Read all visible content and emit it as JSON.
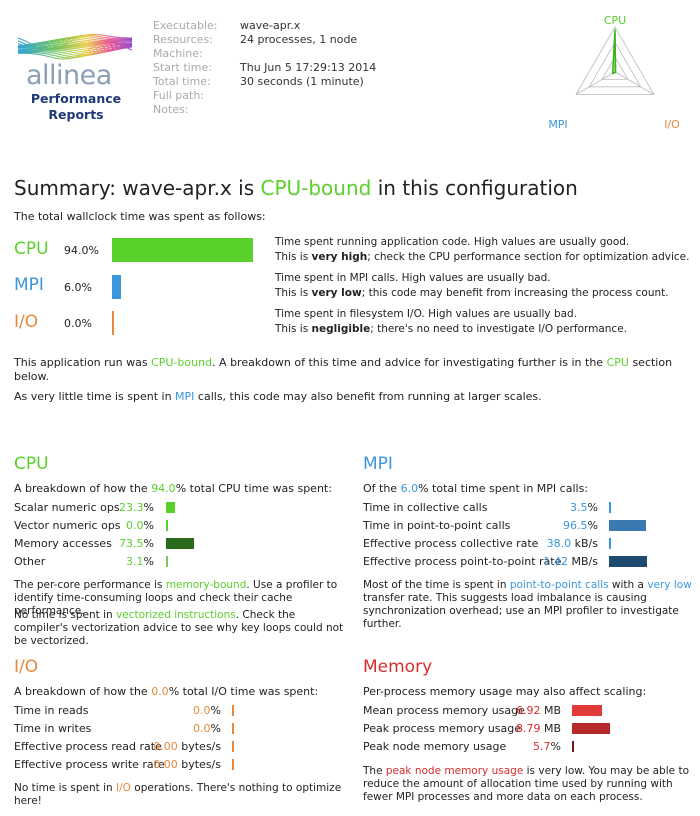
{
  "header": {
    "logo": {
      "brand": "allinea",
      "line1": "Performance",
      "line2": "Reports"
    },
    "meta": [
      {
        "key": "Executable:",
        "value": "wave-apr.x"
      },
      {
        "key": "Resources:",
        "value": "24 processes, 1 node"
      },
      {
        "key": "Machine:",
        "value": ""
      },
      {
        "key": "Start time:",
        "value": "Thu Jun 5 17:29:13 2014"
      },
      {
        "key": "Total time:",
        "value": "30 seconds (1 minute)"
      },
      {
        "key": "Full path:",
        "value": ""
      },
      {
        "key": "Notes:",
        "value": ""
      }
    ],
    "radar": {
      "cpu_label": "CPU",
      "mpi_label": "MPI",
      "io_label": "I/O",
      "cpu": 94.0,
      "mpi": 6.0,
      "io": 0.0
    }
  },
  "summary": {
    "title_prefix": "Summary: wave-apr.x is ",
    "title_highlight": "CPU-bound",
    "title_suffix": " in this configuration",
    "wallclock": "The total wallclock time was spent as follows:",
    "rows": [
      {
        "label": "CPU",
        "pct_text": "94.0%",
        "value": 94.0,
        "color": "#5ad02a",
        "desc1": "Time spent running application code. High values are usually good.",
        "desc2_pre": "This is ",
        "desc2_bold": "very high",
        "desc2_post": "; check the CPU performance section for optimization advice."
      },
      {
        "label": "MPI",
        "pct_text": "6.0%",
        "value": 6.0,
        "color": "#3a96dd",
        "desc1": "Time spent in MPI calls. High values are usually bad.",
        "desc2_pre": "This is ",
        "desc2_bold": "very low",
        "desc2_post": "; this code may benefit from increasing the process count."
      },
      {
        "label": "I/O",
        "pct_text": "0.0%",
        "value": 0.0,
        "color": "#e8883a",
        "desc1": "Time spent in filesystem I/O. High values are usually bad.",
        "desc2_pre": "This is ",
        "desc2_bold": "negligible",
        "desc2_post": "; there's no need to investigate I/O performance."
      }
    ],
    "para1_a": "This application run was ",
    "para1_b": "CPU-bound",
    "para1_c": ". A breakdown of this time and advice for investigating further is in the ",
    "para1_d": "CPU",
    "para1_e": " section below.",
    "para2_a": "As very little time is spent in ",
    "para2_b": "MPI",
    "para2_c": " calls, this code may also benefit from running at larger scales."
  },
  "cpu": {
    "title": "CPU",
    "intro_a": "A breakdown of how the ",
    "intro_b": "94.0",
    "intro_c": "% total CPU time was spent:",
    "rows": [
      {
        "label": "Scalar numeric ops",
        "num": "23.3",
        "unit": "%",
        "value": 23.3,
        "color": "#5ad02a"
      },
      {
        "label": "Vector numeric ops",
        "num": "0.0",
        "unit": "%",
        "value": 0.0,
        "color": "#5ad02a"
      },
      {
        "label": "Memory accesses",
        "num": "73.5",
        "unit": "%",
        "value": 73.5,
        "color": "#2a6a1a"
      },
      {
        "label": "Other",
        "num": "3.1",
        "unit": "%",
        "value": 3.1,
        "color": "#7ac85a"
      }
    ],
    "note1_a": "The per-core performance is ",
    "note1_b": "memory-bound",
    "note1_c": ". Use a profiler to identify time-consuming loops and check their cache performance.",
    "note2_a": "No time is spent in ",
    "note2_b": "vectorized instructions",
    "note2_c": ". Check the compiler's vectorization advice to see why key loops could not be vectorized."
  },
  "mpi": {
    "title": "MPI",
    "intro_a": "Of the ",
    "intro_b": "6.0",
    "intro_c": "% total time spent in MPI calls:",
    "rows": [
      {
        "label": "Time in collective calls",
        "num": "3.5",
        "unit": "%",
        "value": 3.5,
        "color": "#3a96dd"
      },
      {
        "label": "Time in point-to-point calls",
        "num": "96.5",
        "unit": "%",
        "value": 96.5,
        "color": "#3a7ab0"
      },
      {
        "label": "Effective process collective rate",
        "num": "38.0",
        "unit": " kB/s",
        "value": 2.7,
        "color": "#3a96dd"
      },
      {
        "label": "Effective process point-to-point rate",
        "num": "1.42",
        "unit": " MB/s",
        "value": 100,
        "color": "#1e4a70"
      }
    ],
    "note_a": "Most of the time is spent in ",
    "note_b": "point-to-point calls",
    "note_c": " with a ",
    "note_d": "very low",
    "note_e": " transfer rate. This suggests load imbalance is causing synchronization overhead; use an MPI profiler to investigate further."
  },
  "io": {
    "title": "I/O",
    "intro_a": "A breakdown of how the ",
    "intro_b": "0.0",
    "intro_c": "% total I/O time was spent:",
    "rows": [
      {
        "label": "Time in reads",
        "num": "0.0",
        "unit": "%",
        "value": 0.0,
        "color": "#e8883a"
      },
      {
        "label": "Time in writes",
        "num": "0.0",
        "unit": "%",
        "value": 0.0,
        "color": "#e8883a"
      },
      {
        "label": "Effective process read rate",
        "num": "0.00",
        "unit": " bytes/s",
        "value": 0.0,
        "color": "#e8883a"
      },
      {
        "label": "Effective process write rate",
        "num": "0.00",
        "unit": " bytes/s",
        "value": 0.0,
        "color": "#e8883a"
      }
    ],
    "note_a": "No time is spent in ",
    "note_b": "I/O",
    "note_c": " operations. There's nothing to optimize here!"
  },
  "memory": {
    "title": "Memory",
    "intro": "Per-process memory usage may also affect scaling:",
    "rows": [
      {
        "label": "Mean process memory usage",
        "num": "6.92",
        "unit": " MB",
        "value": 78.7,
        "color": "#e03a3a"
      },
      {
        "label": "Peak process memory usage",
        "num": "8.79",
        "unit": " MB",
        "value": 100,
        "color": "#b82a2a"
      },
      {
        "label": "Peak node memory usage",
        "num": "5.7",
        "unit": "%",
        "value": 5.7,
        "color": "#6a1a1a"
      }
    ],
    "note_a": "The ",
    "note_b": "peak node memory usage",
    "note_c": " is very low. You may be able to reduce the amount of allocation time used by running with fewer MPI processes and more data on each process."
  }
}
